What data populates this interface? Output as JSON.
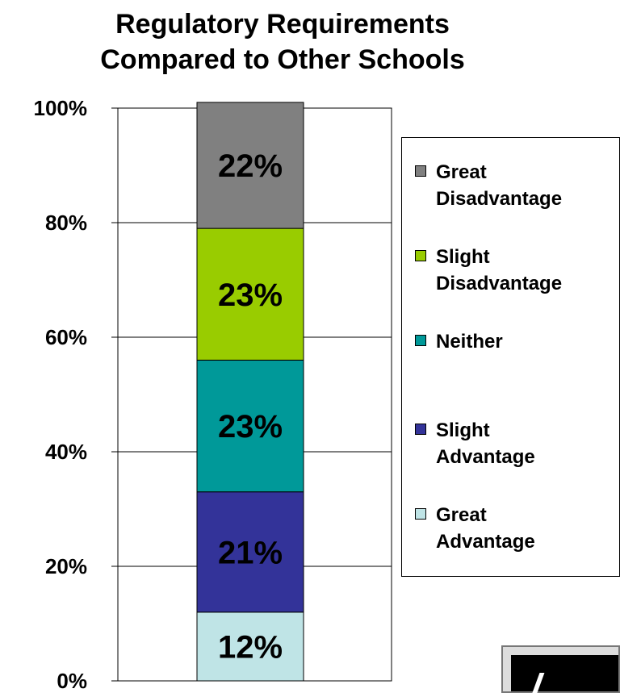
{
  "chart_data": {
    "type": "bar",
    "stacked": true,
    "title_lines": [
      "Regulatory Requirements",
      "Compared to Other Schools"
    ],
    "categories": [
      ""
    ],
    "series": [
      {
        "name": "Great Advantage",
        "values": [
          12
        ],
        "label": "12%",
        "color": "#bfe4e6"
      },
      {
        "name": "Slight Advantage",
        "values": [
          21
        ],
        "label": "21%",
        "color": "#333399"
      },
      {
        "name": "Neither",
        "values": [
          23
        ],
        "label": "23%",
        "color": "#009999"
      },
      {
        "name": "Slight Disadvantage",
        "values": [
          23
        ],
        "label": "23%",
        "color": "#99cc00"
      },
      {
        "name": "Great Disadvantage",
        "values": [
          22
        ],
        "label": "22%",
        "color": "#808080"
      }
    ],
    "ylim": [
      0,
      100
    ],
    "yticks": [
      0,
      20,
      40,
      60,
      80,
      100
    ],
    "ytick_labels": [
      "0%",
      "20%",
      "40%",
      "60%",
      "80%",
      "100%"
    ],
    "grid": true,
    "legend": {
      "placement": "right",
      "entries": [
        "Great\nDisadvantage",
        "Slight\nDisadvantage",
        "Neither",
        "Slight\nAdvantage",
        "Great\nAdvantage"
      ],
      "colors": [
        "#808080",
        "#99cc00",
        "#009999",
        "#333399",
        "#bfe4e6"
      ]
    }
  }
}
